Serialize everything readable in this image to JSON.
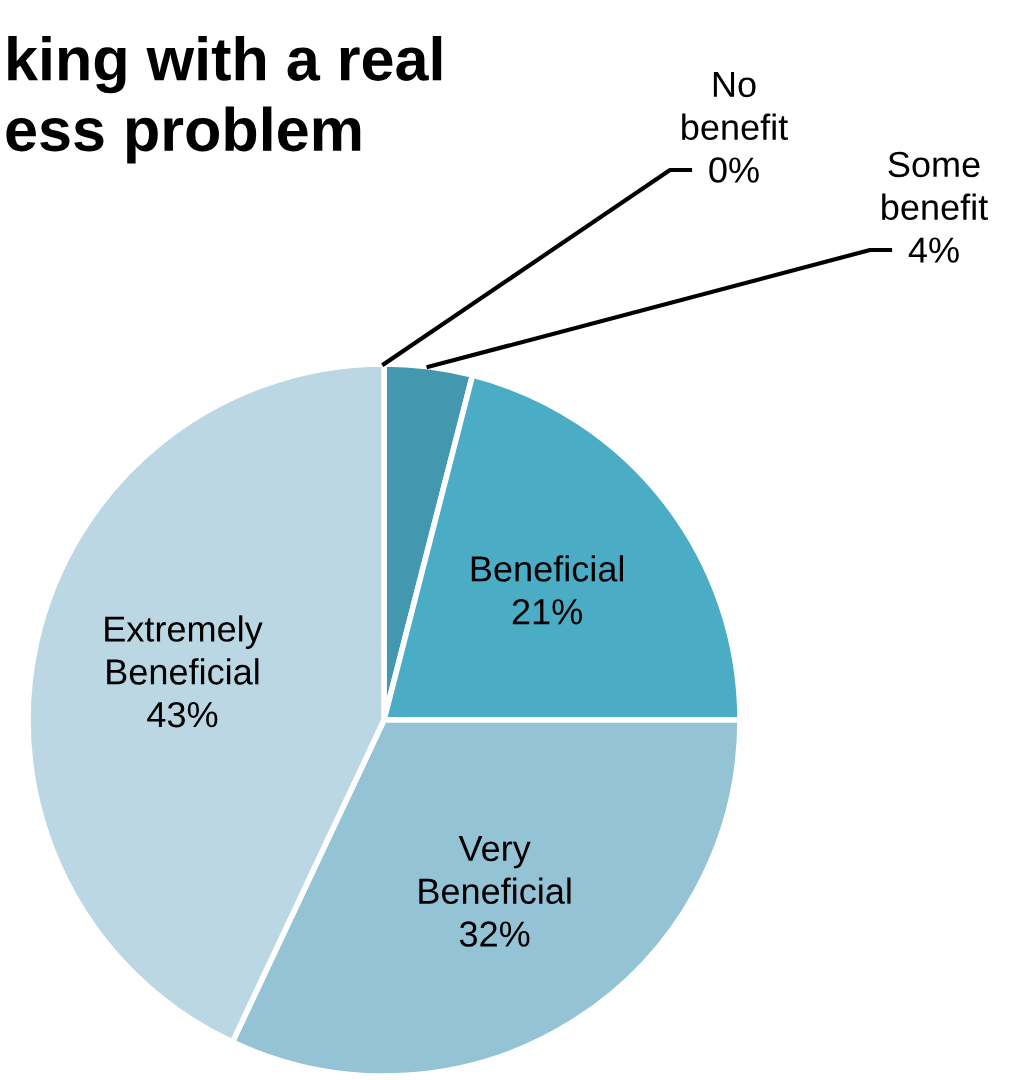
{
  "chart_data": {
    "type": "pie",
    "title": "king with a real\ness problem",
    "categories": [
      "No\nbenefit",
      "Some\nbenefit",
      "Beneficial",
      "Very\nBeneficial",
      "Extremely\nBeneficial"
    ],
    "values": [
      0,
      4,
      21,
      32,
      43
    ],
    "colors": [
      "#3f8fa8",
      "#4398b0",
      "#4bacc6",
      "#93c3d5",
      "#bad7e3"
    ],
    "value_labels": [
      "0%",
      "4%",
      "21%",
      "32%",
      "43%"
    ]
  }
}
